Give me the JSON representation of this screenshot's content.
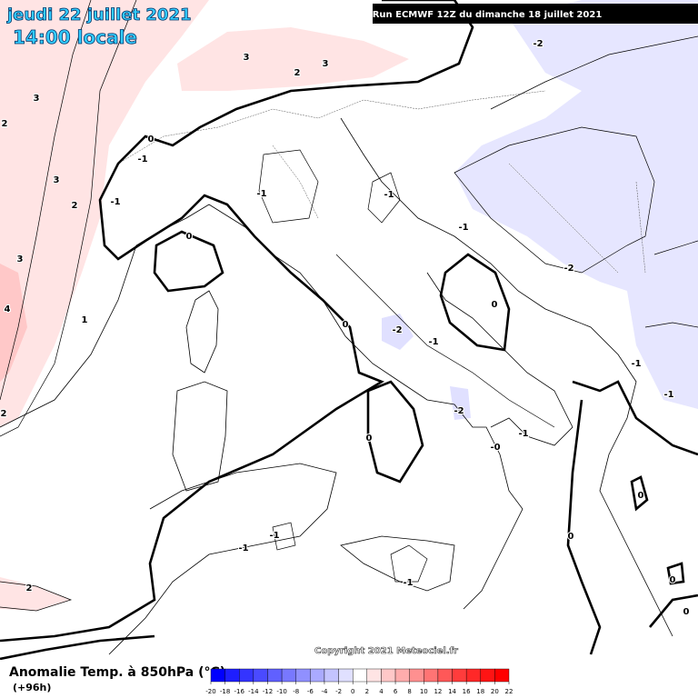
{
  "header": {
    "date": "jeudi 22 juillet 2021",
    "time": "14:00 locale",
    "run": "Run ECMWF 12Z du dimanche 18 juillet 2021"
  },
  "copyright": "Copyright 2021 Meteociel.fr",
  "legend": {
    "title": "Anomalie Temp. à 850hPa (°C)",
    "lead": "(+96h)",
    "ticks": [
      -20,
      -18,
      -16,
      -14,
      -12,
      -10,
      -8,
      -6,
      -4,
      -2,
      0,
      2,
      4,
      6,
      8,
      10,
      12,
      14,
      16,
      18,
      20,
      22
    ],
    "colors": [
      "#0000ff",
      "#1e1eff",
      "#3434ff",
      "#4a4aff",
      "#6060ff",
      "#7878ff",
      "#9090ff",
      "#aaaaff",
      "#c4c4ff",
      "#e0e0ff",
      "#ffffff",
      "#ffe4e4",
      "#ffc8c8",
      "#ffacac",
      "#ff9090",
      "#ff7474",
      "#ff5858",
      "#ff3c3c",
      "#ff2828",
      "#ff1414",
      "#ff0000"
    ]
  },
  "contour_labels": [
    "3",
    "2",
    "3",
    "2",
    "3",
    "4",
    "1",
    "2",
    "2",
    "3",
    "2",
    "3",
    "0",
    "-1",
    "-1",
    "0",
    "-1",
    "-1",
    "-1",
    "-2",
    "-2",
    "0",
    "0",
    "-2",
    "-1",
    "-2",
    "0",
    "-0",
    "-1",
    "0",
    "0",
    "-1",
    "-1",
    "-1",
    "0",
    "0",
    "-1",
    "-1"
  ]
}
